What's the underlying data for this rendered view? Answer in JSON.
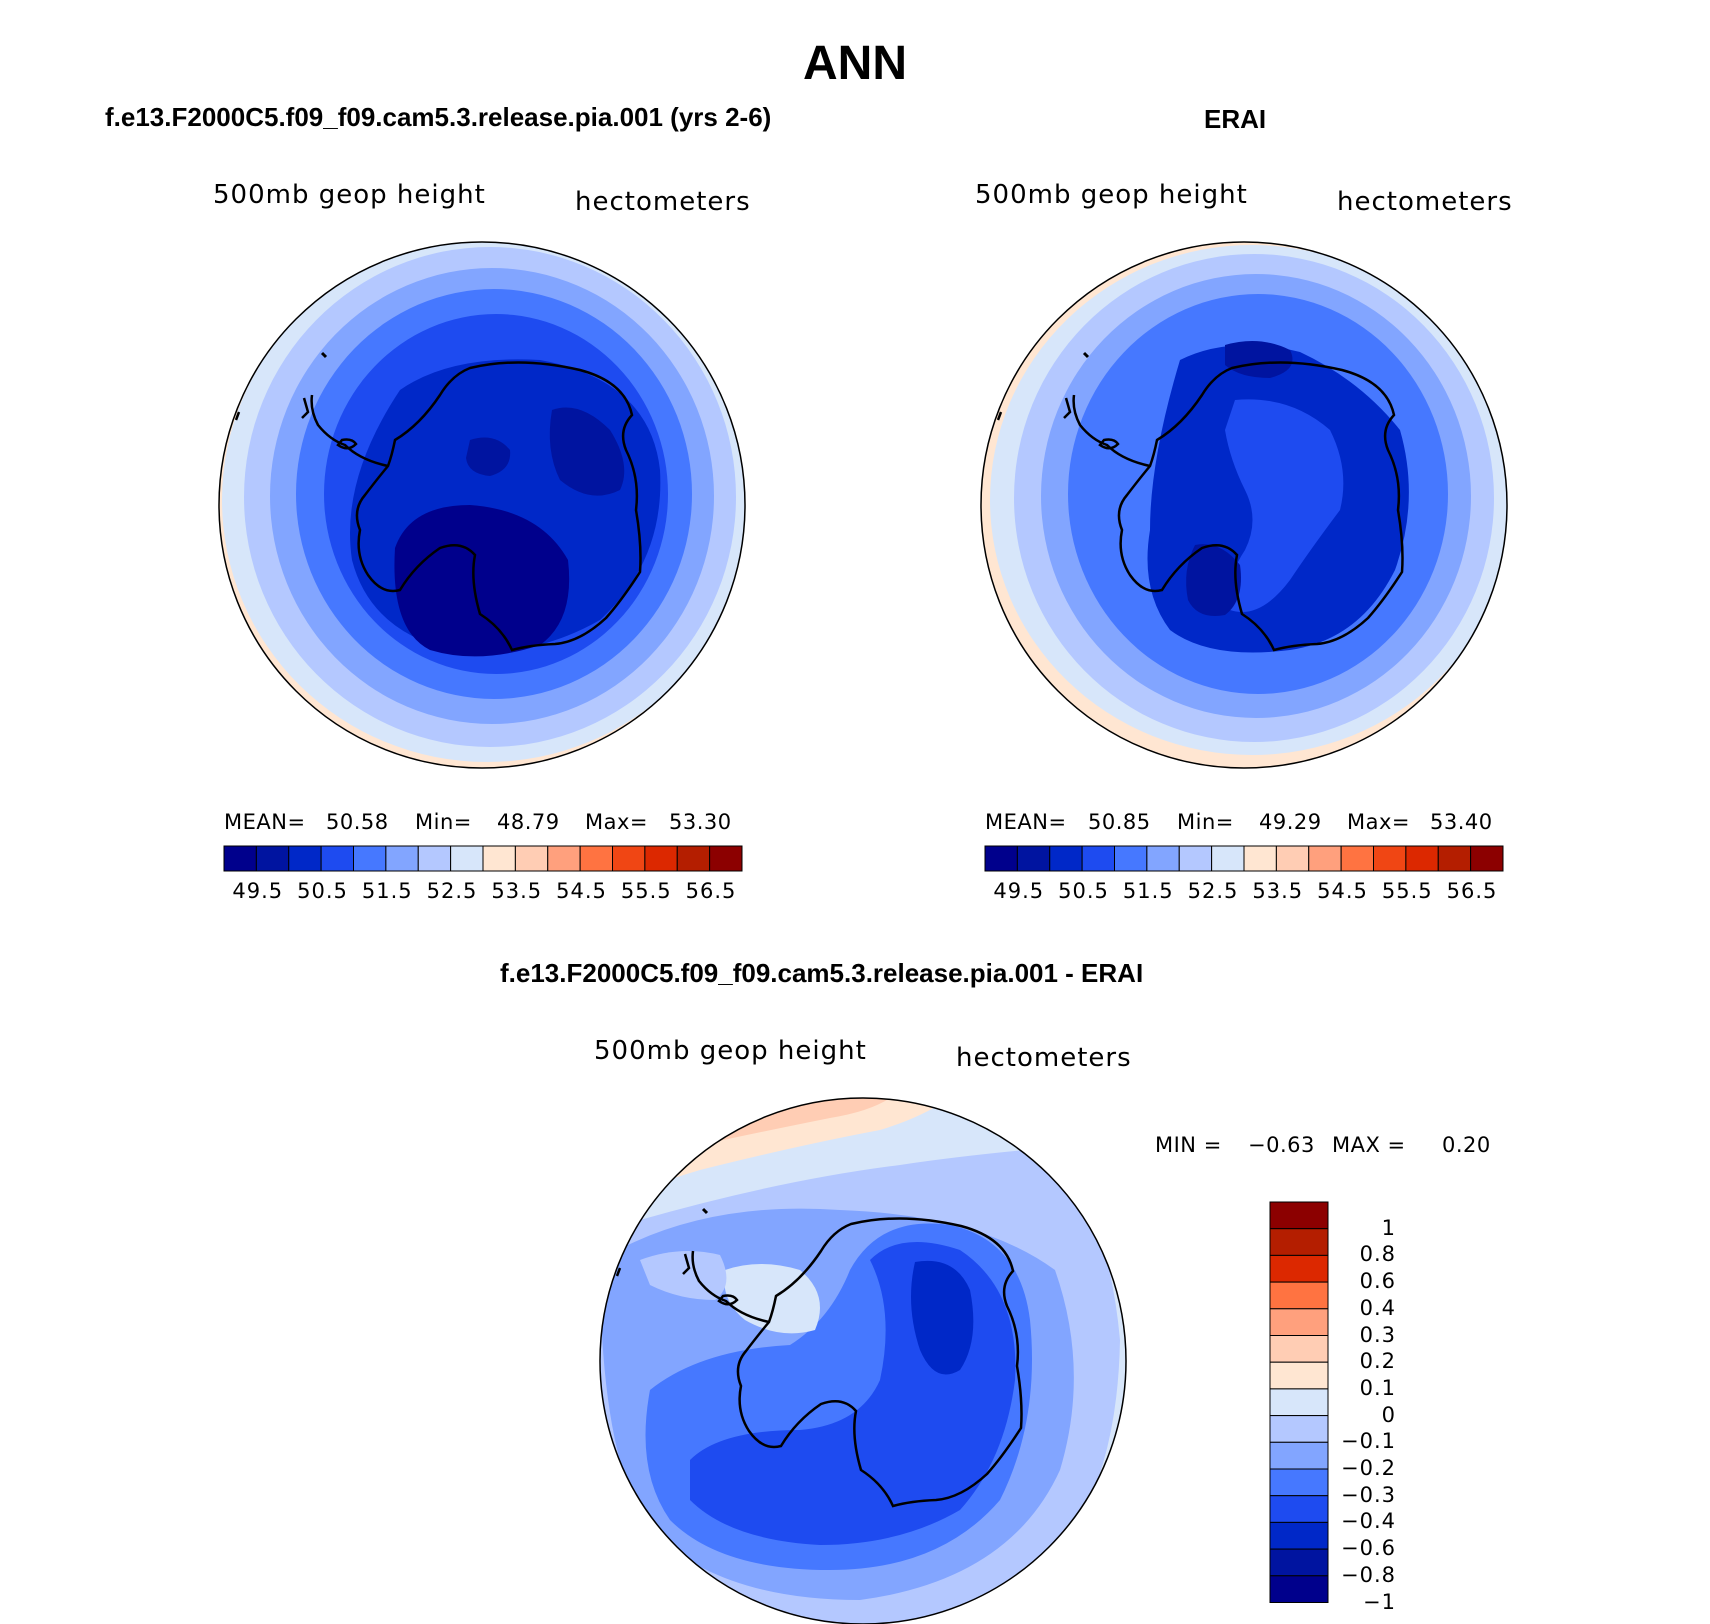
{
  "main_title": "ANN",
  "panels": [
    {
      "title": "f.e13.F2000C5.f09_f09.cam5.3.release.pia.001 (yrs 2-6)",
      "variable": "500mb geop height",
      "units": "hectometers",
      "stats": {
        "mean_label": "MEAN=",
        "mean": "50.58",
        "min_label": "Min=",
        "min": "48.79",
        "max_label": "Max=",
        "max": "53.30"
      }
    },
    {
      "title": "ERAI",
      "variable": "500mb geop height",
      "units": "hectometers",
      "stats": {
        "mean_label": "MEAN=",
        "mean": "50.85",
        "min_label": "Min=",
        "min": "49.29",
        "max_label": "Max=",
        "max": "53.40"
      }
    },
    {
      "title": "f.e13.F2000C5.f09_f09.cam5.3.release.pia.001 - ERAI",
      "variable": "500mb geop height",
      "units": "hectometers",
      "stats": {
        "min_label": "MIN =",
        "min": "−0.63",
        "max_label": "MAX =",
        "max": "0.20"
      }
    }
  ],
  "colorbar_horizontal": {
    "colors": [
      "#00008c",
      "#0014a0",
      "#0028c8",
      "#1e4bf0",
      "#4678ff",
      "#82a5ff",
      "#b4c8ff",
      "#d7e6fa",
      "#ffe6d2",
      "#ffcdb4",
      "#ffa07d",
      "#ff7341",
      "#f04614",
      "#dc2800",
      "#b41e00",
      "#8c0000"
    ],
    "tick_labels": [
      "49.5",
      "50.5",
      "51.5",
      "52.5",
      "53.5",
      "54.5",
      "55.5",
      "56.5"
    ]
  },
  "colorbar_vertical": {
    "colors": [
      "#8c0000",
      "#b41e00",
      "#dc2800",
      "#ff7341",
      "#ffa07d",
      "#ffcdb4",
      "#ffe6d2",
      "#d7e6fa",
      "#b4c8ff",
      "#82a5ff",
      "#4678ff",
      "#1e4bf0",
      "#0028c8",
      "#0014a0",
      "#00008c"
    ],
    "tick_labels": [
      "1",
      "0.8",
      "0.6",
      "0.4",
      "0.3",
      "0.2",
      "0.1",
      "0",
      "−0.1",
      "−0.2",
      "−0.3",
      "−0.4",
      "−0.6",
      "−0.8",
      "−1"
    ]
  }
}
